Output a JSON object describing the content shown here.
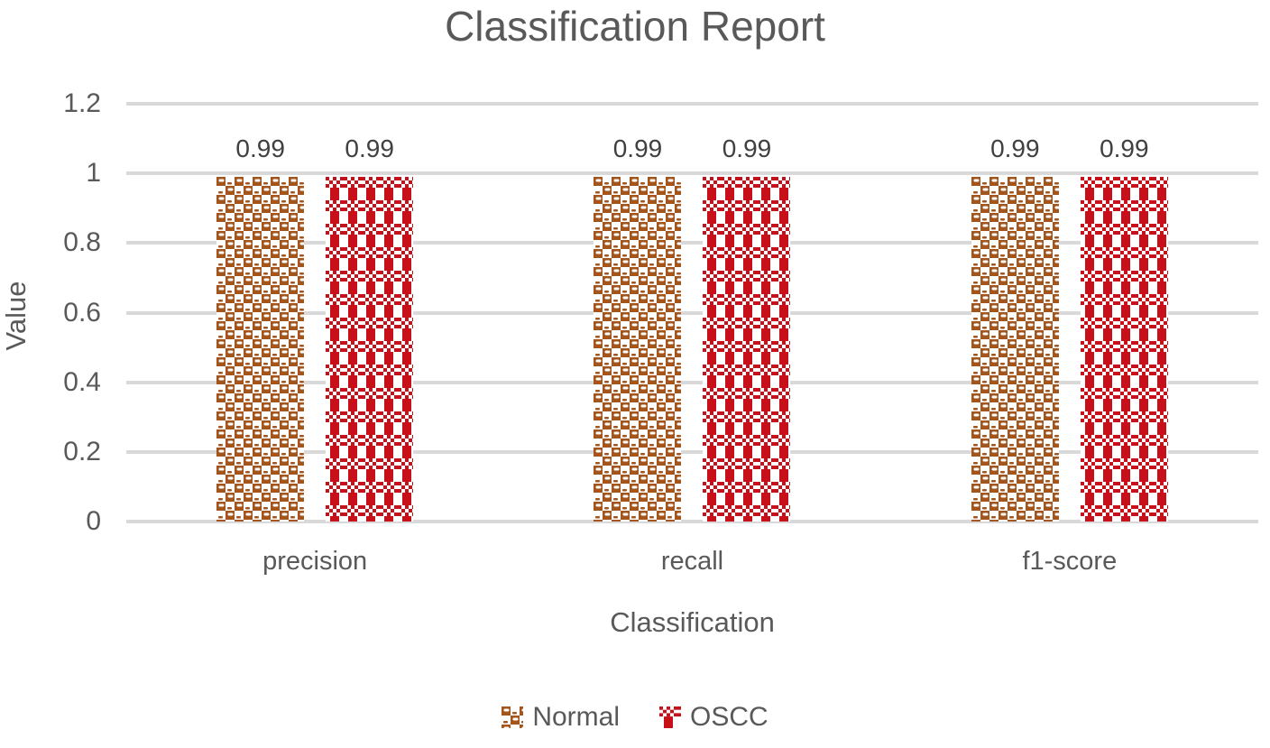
{
  "title": "Classification Report",
  "colors": {
    "normal_fill": "#A4551C",
    "oscc_fill": "#C8101A",
    "title_text": "#595959",
    "axis_text": "#595959",
    "data_label_text": "#404040",
    "gridline": "#D9D9D9"
  },
  "icons": {
    "legend_swatch_normal": "brown-checker-pattern-swatch",
    "legend_swatch_oscc": "red-weave-pattern-swatch"
  },
  "chart_data": {
    "type": "bar",
    "title": "Classification Report",
    "categories": [
      "precision",
      "recall",
      "f1-score"
    ],
    "series": [
      {
        "name": "Normal",
        "values": [
          0.99,
          0.99,
          0.99
        ],
        "color": "#A4551C",
        "pattern": "checker-with-white-dashes"
      },
      {
        "name": "OSCC",
        "values": [
          0.99,
          0.99,
          0.99
        ],
        "color": "#C8101A",
        "pattern": "vertical-stripes-with-checker-bands"
      }
    ],
    "data_labels": [
      "0.99",
      "0.99",
      "0.99",
      "0.99",
      "0.99",
      "0.99"
    ],
    "xlabel": "Classification",
    "ylabel": "Value",
    "ylim": [
      0,
      1.2
    ],
    "yticks": [
      "1.2",
      "1",
      "0.8",
      "0.6",
      "0.4",
      "0.2",
      "0"
    ],
    "grid": true,
    "legend_position": "bottom"
  }
}
